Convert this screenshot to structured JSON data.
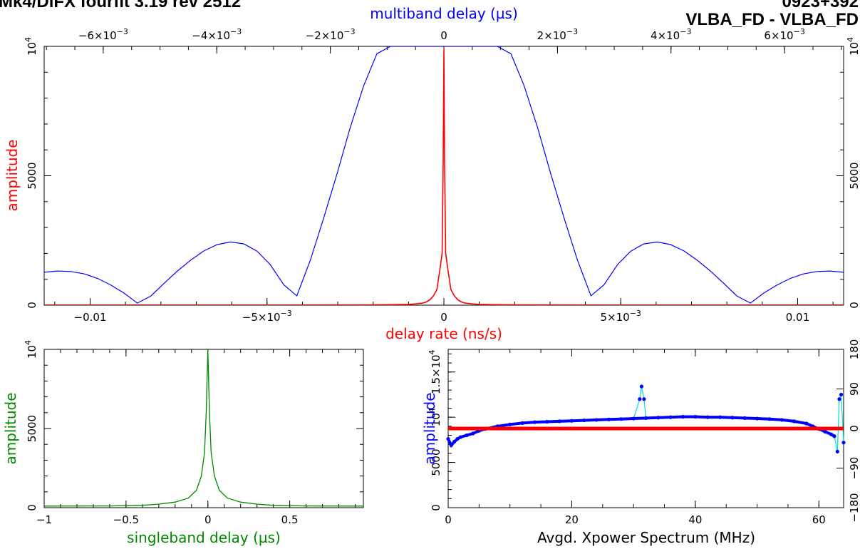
{
  "header": {
    "left_title": "Mk4/DiFX fourfit 3.19 rev 2512",
    "right_title": "0923+392",
    "baseline": "VLBA_FD - VLBA_FD"
  },
  "colors": {
    "delay_rate": "#ff0000",
    "multiband": "#0000ff",
    "singleband": "#008800",
    "spectrum_points": "#0000ff",
    "spectrum_line": "#00dddd",
    "phase": "#ff0000",
    "axes": "#000000"
  },
  "chart_data": [
    {
      "id": "main",
      "type": "line",
      "xlabel_bottom": "delay rate (ns/s)",
      "xlabel_top": "multiband delay (µs)",
      "ylabel": "amplitude",
      "xlim_bottom": [
        -0.0113,
        0.0113
      ],
      "xlim_top": [
        -0.00704,
        0.00704
      ],
      "ylim": [
        0,
        10000
      ],
      "bottom_ticks": [
        {
          "v": -0.01,
          "label": "−0.01"
        },
        {
          "v": -0.005,
          "label": "−5×10",
          "exp": "−3"
        },
        {
          "v": 0,
          "label": "0"
        },
        {
          "v": 0.005,
          "label": "5×10",
          "exp": "−3"
        },
        {
          "v": 0.01,
          "label": "0.01"
        }
      ],
      "top_ticks": [
        {
          "v": -0.006,
          "label": "−6×10",
          "exp": "−3"
        },
        {
          "v": -0.004,
          "label": "−4×10",
          "exp": "−3"
        },
        {
          "v": -0.002,
          "label": "−2×10",
          "exp": "−3"
        },
        {
          "v": 0,
          "label": "0"
        },
        {
          "v": 0.002,
          "label": "2×10",
          "exp": "−3"
        },
        {
          "v": 0.004,
          "label": "4×10",
          "exp": "−3"
        },
        {
          "v": 0.006,
          "label": "6×10",
          "exp": "−3"
        }
      ],
      "left_ticks": [
        {
          "v": 0,
          "label": "0"
        },
        {
          "v": 5000,
          "label": "5000"
        },
        {
          "v": 10000,
          "label": "10",
          "exp": "4"
        }
      ],
      "right_ticks": [
        {
          "v": 0,
          "label": "0"
        },
        {
          "v": 5000,
          "label": "5000"
        },
        {
          "v": 10000,
          "label": "10",
          "exp": "4"
        }
      ],
      "series": [
        {
          "key": "multiband",
          "x_axis": "top",
          "values": [
            [
              -0.00704,
              1271
            ],
            [
              -0.0068,
              1320
            ],
            [
              -0.00657,
              1301
            ],
            [
              -0.00633,
              1207
            ],
            [
              -0.0061,
              1033
            ],
            [
              -0.00587,
              781
            ],
            [
              -0.00563,
              459
            ],
            [
              -0.0054,
              79
            ],
            [
              -0.00516,
              356
            ],
            [
              -0.00493,
              838
            ],
            [
              -0.0047,
              1309
            ],
            [
              -0.00446,
              1738
            ],
            [
              -0.00423,
              2093
            ],
            [
              -0.00399,
              2341
            ],
            [
              -0.00376,
              2442
            ],
            [
              -0.00352,
              2366
            ],
            [
              -0.00329,
              2085
            ],
            [
              -0.00306,
              1570
            ],
            [
              -0.00282,
              786
            ],
            [
              -0.00259,
              360
            ],
            [
              -0.00235,
              1753
            ],
            [
              -0.00212,
              3351
            ],
            [
              -0.00188,
              5090
            ],
            [
              -0.00165,
              6861
            ],
            [
              -0.00141,
              8491
            ],
            [
              -0.00118,
              9715
            ],
            [
              -0.00094,
              10000
            ],
            [
              -0.00071,
              10000
            ],
            [
              -0.00047,
              10000
            ],
            [
              -0.00024,
              10000
            ],
            [
              0,
              10000
            ],
            [
              0.00024,
              10000
            ],
            [
              0.00047,
              10000
            ],
            [
              0.00071,
              10000
            ],
            [
              0.00094,
              10000
            ],
            [
              0.00118,
              9715
            ],
            [
              0.00141,
              8491
            ],
            [
              0.00165,
              6861
            ],
            [
              0.00188,
              5090
            ],
            [
              0.00212,
              3351
            ],
            [
              0.00235,
              1753
            ],
            [
              0.00259,
              360
            ],
            [
              0.00282,
              786
            ],
            [
              0.00306,
              1570
            ],
            [
              0.00329,
              2085
            ],
            [
              0.00352,
              2366
            ],
            [
              0.00376,
              2442
            ],
            [
              0.00399,
              2341
            ],
            [
              0.00423,
              2093
            ],
            [
              0.00446,
              1738
            ],
            [
              0.0047,
              1309
            ],
            [
              0.00493,
              838
            ],
            [
              0.00516,
              356
            ],
            [
              0.0054,
              79
            ],
            [
              0.00563,
              459
            ],
            [
              0.00587,
              781
            ],
            [
              0.0061,
              1033
            ],
            [
              0.00633,
              1207
            ],
            [
              0.00657,
              1301
            ],
            [
              0.0068,
              1320
            ],
            [
              0.00704,
              1271
            ]
          ]
        },
        {
          "key": "delay_rate",
          "x_axis": "bottom",
          "values": [
            [
              -0.0113,
              5
            ],
            [
              -0.0045,
              5
            ],
            [
              -0.003,
              8
            ],
            [
              -0.002,
              10
            ],
            [
              -0.0015,
              18
            ],
            [
              -0.001,
              30
            ],
            [
              -0.0008,
              50
            ],
            [
              -0.0006,
              80
            ],
            [
              -0.0005,
              120
            ],
            [
              -0.0004,
              200
            ],
            [
              -0.0003,
              350
            ],
            [
              -0.0002,
              600
            ],
            [
              -0.00012,
              1300
            ],
            [
              -5e-05,
              2000
            ],
            [
              -2e-05,
              5500
            ],
            [
              0,
              9900
            ],
            [
              2e-05,
              5500
            ],
            [
              5e-05,
              2000
            ],
            [
              0.00012,
              1300
            ],
            [
              0.0002,
              600
            ],
            [
              0.0003,
              350
            ],
            [
              0.0004,
              200
            ],
            [
              0.0005,
              120
            ],
            [
              0.0006,
              80
            ],
            [
              0.0008,
              50
            ],
            [
              0.001,
              30
            ],
            [
              0.0015,
              18
            ],
            [
              0.002,
              10
            ],
            [
              0.003,
              8
            ],
            [
              0.0045,
              5
            ],
            [
              0.0113,
              5
            ]
          ]
        }
      ]
    },
    {
      "id": "singleband",
      "type": "line",
      "xlabel": "singleband delay (µs)",
      "ylabel": "amplitude",
      "xlim": [
        -1,
        0.95
      ],
      "ylim": [
        0,
        10000
      ],
      "x_ticks": [
        {
          "v": -1,
          "label": "−1"
        },
        {
          "v": -0.5,
          "label": "−0.5"
        },
        {
          "v": 0,
          "label": "0"
        },
        {
          "v": 0.5,
          "label": "0.5"
        }
      ],
      "y_ticks": [
        {
          "v": 0,
          "label": "0"
        },
        {
          "v": 5000,
          "label": "5000"
        },
        {
          "v": 10000,
          "label": "10",
          "exp": "4"
        }
      ],
      "series": [
        {
          "key": "singleband",
          "values": [
            [
              -1,
              100
            ],
            [
              -0.6,
              110
            ],
            [
              -0.4,
              150
            ],
            [
              -0.3,
              220
            ],
            [
              -0.2,
              350
            ],
            [
              -0.12,
              600
            ],
            [
              -0.07,
              1100
            ],
            [
              -0.04,
              2000
            ],
            [
              -0.02,
              3500
            ],
            [
              -0.01,
              6000
            ],
            [
              0,
              10000
            ],
            [
              0.01,
              6000
            ],
            [
              0.02,
              3500
            ],
            [
              0.04,
              2000
            ],
            [
              0.07,
              1100
            ],
            [
              0.12,
              600
            ],
            [
              0.2,
              350
            ],
            [
              0.3,
              220
            ],
            [
              0.4,
              150
            ],
            [
              0.6,
              110
            ],
            [
              0.95,
              100
            ]
          ]
        }
      ]
    },
    {
      "id": "spectrum",
      "type": "scatter",
      "xlabel": "Avgd. Xpower Spectrum (MHz)",
      "ylabel": "amplitude",
      "xlim": [
        0,
        64
      ],
      "ylim": [
        0,
        17500
      ],
      "ylim_right": [
        -180,
        180
      ],
      "x_ticks": [
        {
          "v": 0,
          "label": "0"
        },
        {
          "v": 20,
          "label": "20"
        },
        {
          "v": 40,
          "label": "40"
        },
        {
          "v": 60,
          "label": "60"
        }
      ],
      "y_ticks": [
        {
          "v": 0,
          "label": "0"
        },
        {
          "v": 5000,
          "label": "5000"
        },
        {
          "v": 10000,
          "label": "10",
          "exp": "4"
        },
        {
          "v": 15000,
          "label": "1.5×10",
          "exp": "4"
        }
      ],
      "right_ticks": [
        {
          "v": -180,
          "label": "−180"
        },
        {
          "v": -90,
          "label": "−90"
        },
        {
          "v": 0,
          "label": "0"
        },
        {
          "v": 90,
          "label": "90"
        },
        {
          "v": 180,
          "label": "180"
        }
      ],
      "phase_value": 0,
      "series": [
        {
          "key": "spectrum_points",
          "values": [
            [
              0,
              7600
            ],
            [
              0.5,
              6900
            ],
            [
              1,
              7300
            ],
            [
              1.5,
              7600
            ],
            [
              2,
              7800
            ],
            [
              3,
              8000
            ],
            [
              4,
              8200
            ],
            [
              5,
              8500
            ],
            [
              6,
              8700
            ],
            [
              8,
              9000
            ],
            [
              10,
              9200
            ],
            [
              12,
              9350
            ],
            [
              14,
              9450
            ],
            [
              16,
              9500
            ],
            [
              18,
              9550
            ],
            [
              20,
              9600
            ],
            [
              22,
              9650
            ],
            [
              24,
              9700
            ],
            [
              26,
              9750
            ],
            [
              28,
              9800
            ],
            [
              30,
              9850
            ],
            [
              31,
              12000
            ],
            [
              31.3,
              13400
            ],
            [
              31.7,
              12000
            ],
            [
              32,
              9900
            ],
            [
              34,
              9950
            ],
            [
              36,
              10000
            ],
            [
              38,
              10050
            ],
            [
              40,
              10050
            ],
            [
              42,
              10000
            ],
            [
              44,
              10000
            ],
            [
              46,
              9950
            ],
            [
              48,
              9900
            ],
            [
              50,
              9850
            ],
            [
              52,
              9800
            ],
            [
              54,
              9700
            ],
            [
              56,
              9550
            ],
            [
              58,
              9300
            ],
            [
              59,
              9000
            ],
            [
              60,
              8700
            ],
            [
              61,
              8400
            ],
            [
              62,
              8100
            ],
            [
              62.5,
              7900
            ],
            [
              63,
              6200
            ],
            [
              63.3,
              12000
            ],
            [
              63.6,
              12500
            ],
            [
              64,
              7200
            ]
          ]
        }
      ]
    }
  ]
}
